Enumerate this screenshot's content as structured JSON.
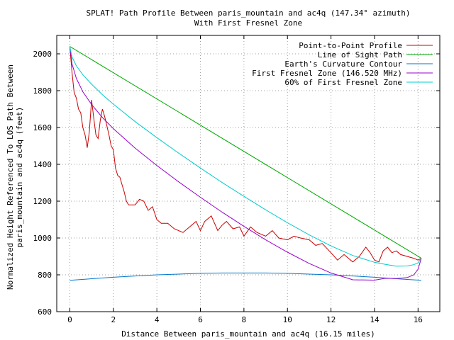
{
  "chart_data": {
    "type": "line",
    "title": "SPLAT! Path Profile Between paris_mountain and ac4q (147.34° azimuth)",
    "subtitle": "With First Fresnel Zone",
    "xlabel": "Distance Between paris_mountain and ac4q (16.15 miles)",
    "ylabel": [
      "Normalized Height Referenced To LOS Path Between",
      "paris_mountain and ac4q (feet)"
    ],
    "xlim": [
      -0.6,
      17
    ],
    "ylim": [
      600,
      2100
    ],
    "x_ticks": [
      0,
      2,
      4,
      6,
      8,
      10,
      12,
      14,
      16
    ],
    "y_ticks": [
      600,
      800,
      1000,
      1200,
      1400,
      1600,
      1800,
      2000
    ],
    "grid": true,
    "legend_position": "top-right",
    "series": [
      {
        "name": "Point-to-Point Profile",
        "color": "#cc0000",
        "x": [
          0,
          0.1,
          0.2,
          0.3,
          0.4,
          0.5,
          0.6,
          0.7,
          0.8,
          0.9,
          1.0,
          1.1,
          1.2,
          1.3,
          1.4,
          1.5,
          1.6,
          1.7,
          1.8,
          1.9,
          2.0,
          2.1,
          2.2,
          2.3,
          2.4,
          2.5,
          2.6,
          2.7,
          2.8,
          3.0,
          3.2,
          3.4,
          3.6,
          3.8,
          4.0,
          4.2,
          4.5,
          4.8,
          5.0,
          5.2,
          5.5,
          5.8,
          6.0,
          6.2,
          6.5,
          6.8,
          7.0,
          7.2,
          7.5,
          7.8,
          8.0,
          8.3,
          8.6,
          9.0,
          9.3,
          9.6,
          10.0,
          10.3,
          10.6,
          11.0,
          11.3,
          11.6,
          12.0,
          12.3,
          12.6,
          13.0,
          13.3,
          13.6,
          13.8,
          14.0,
          14.2,
          14.4,
          14.6,
          14.8,
          15.0,
          15.2,
          15.5,
          15.8,
          16.0,
          16.15
        ],
        "y": [
          2040,
          1900,
          1790,
          1760,
          1700,
          1680,
          1600,
          1560,
          1490,
          1580,
          1750,
          1650,
          1560,
          1540,
          1640,
          1700,
          1660,
          1610,
          1560,
          1500,
          1480,
          1380,
          1340,
          1330,
          1290,
          1250,
          1200,
          1180,
          1180,
          1180,
          1210,
          1200,
          1150,
          1170,
          1100,
          1080,
          1080,
          1050,
          1040,
          1030,
          1060,
          1090,
          1040,
          1090,
          1120,
          1040,
          1070,
          1090,
          1050,
          1060,
          1010,
          1060,
          1030,
          1010,
          1040,
          1000,
          990,
          1010,
          1000,
          990,
          960,
          970,
          920,
          880,
          910,
          870,
          900,
          950,
          920,
          880,
          870,
          930,
          950,
          920,
          930,
          910,
          900,
          890,
          880,
          890
        ]
      },
      {
        "name": "Line of Sight Path",
        "color": "#00aa00",
        "x": [
          0,
          16.15
        ],
        "y": [
          2040,
          890
        ]
      },
      {
        "name": "Earth's Curvature Contour",
        "color": "#0077cc",
        "x": [
          0,
          1,
          2,
          3,
          4,
          5,
          6,
          7,
          8,
          9,
          10,
          11,
          12,
          13,
          14,
          15,
          16.15
        ],
        "y": [
          770,
          779,
          787,
          794,
          800,
          804,
          808,
          810,
          810,
          810,
          808,
          804,
          800,
          794,
          787,
          779,
          770
        ]
      },
      {
        "name": "First Fresnel Zone (146.520 MHz)",
        "color": "#9900cc",
        "x": [
          0,
          0.1,
          0.3,
          0.6,
          1,
          1.5,
          2,
          3,
          4,
          5,
          6,
          7,
          8,
          9,
          10,
          11,
          12,
          13,
          14,
          14.5,
          15,
          15.5,
          15.8,
          16.0,
          16.15
        ],
        "y": [
          2040,
          1946,
          1867,
          1794,
          1725,
          1654,
          1594,
          1488,
          1394,
          1305,
          1221,
          1140,
          1063,
          990,
          923,
          862,
          810,
          773,
          771,
          781,
          780,
          785,
          800,
          830,
          890
        ]
      },
      {
        "name": "60% of First Fresnel Zone",
        "color": "#00cccc",
        "x": [
          0,
          0.1,
          0.3,
          0.6,
          1,
          1.5,
          2,
          3,
          4,
          5,
          6,
          7,
          8,
          9,
          10,
          11,
          12,
          13,
          14,
          14.5,
          15,
          15.5,
          15.8,
          16.0,
          16.15
        ],
        "y": [
          2040,
          1983,
          1935,
          1886,
          1835,
          1778,
          1727,
          1632,
          1545,
          1461,
          1380,
          1301,
          1226,
          1153,
          1083,
          1017,
          957,
          905,
          868,
          857,
          847,
          848,
          855,
          865,
          890
        ]
      }
    ]
  }
}
